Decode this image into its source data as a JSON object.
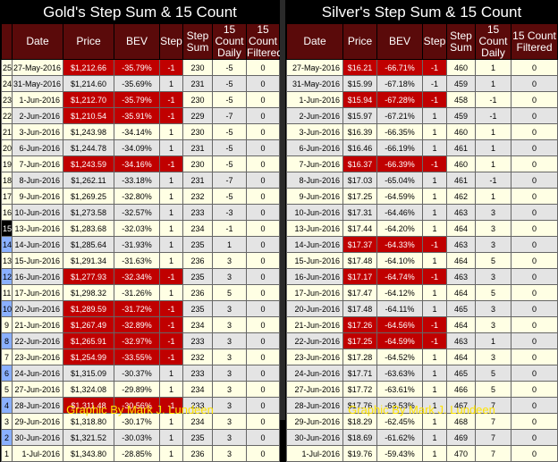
{
  "chart_data": [
    {
      "type": "table",
      "title": "Gold's Step Sum & 15 Count",
      "columns": [
        "",
        "Date",
        "Price",
        "BEV",
        "Step",
        "Step Sum",
        "15 Count Daily",
        "15 Count Filtered"
      ],
      "rows": [
        {
          "n": "25",
          "date": "27-May-2016",
          "price": "$1,212.66",
          "bev": "-35.79%",
          "step": "-1",
          "sum": "230",
          "daily": "-5",
          "filt": "0",
          "hl": true
        },
        {
          "n": "24",
          "date": "31-May-2016",
          "price": "$1,214.60",
          "bev": "-35.69%",
          "step": "1",
          "sum": "231",
          "daily": "-5",
          "filt": "0",
          "hl": false
        },
        {
          "n": "23",
          "date": "1-Jun-2016",
          "price": "$1,212.70",
          "bev": "-35.79%",
          "step": "-1",
          "sum": "230",
          "daily": "-5",
          "filt": "0",
          "hl": true
        },
        {
          "n": "22",
          "date": "2-Jun-2016",
          "price": "$1,210.54",
          "bev": "-35.91%",
          "step": "-1",
          "sum": "229",
          "daily": "-7",
          "filt": "0",
          "hl": true
        },
        {
          "n": "21",
          "date": "3-Jun-2016",
          "price": "$1,243.98",
          "bev": "-34.14%",
          "step": "1",
          "sum": "230",
          "daily": "-5",
          "filt": "0",
          "hl": false
        },
        {
          "n": "20",
          "date": "6-Jun-2016",
          "price": "$1,244.78",
          "bev": "-34.09%",
          "step": "1",
          "sum": "231",
          "daily": "-5",
          "filt": "0",
          "hl": false
        },
        {
          "n": "19",
          "date": "7-Jun-2016",
          "price": "$1,243.59",
          "bev": "-34.16%",
          "step": "-1",
          "sum": "230",
          "daily": "-5",
          "filt": "0",
          "hl": true
        },
        {
          "n": "18",
          "date": "8-Jun-2016",
          "price": "$1,262.11",
          "bev": "-33.18%",
          "step": "1",
          "sum": "231",
          "daily": "-7",
          "filt": "0",
          "hl": false
        },
        {
          "n": "17",
          "date": "9-Jun-2016",
          "price": "$1,269.25",
          "bev": "-32.80%",
          "step": "1",
          "sum": "232",
          "daily": "-5",
          "filt": "0",
          "hl": false
        },
        {
          "n": "16",
          "date": "10-Jun-2016",
          "price": "$1,273.58",
          "bev": "-32.57%",
          "step": "1",
          "sum": "233",
          "daily": "-3",
          "filt": "0",
          "hl": false
        },
        {
          "n": "15",
          "date": "13-Jun-2016",
          "price": "$1,283.68",
          "bev": "-32.03%",
          "step": "1",
          "sum": "234",
          "daily": "-1",
          "filt": "0",
          "hl": false
        },
        {
          "n": "14",
          "date": "14-Jun-2016",
          "price": "$1,285.64",
          "bev": "-31.93%",
          "step": "1",
          "sum": "235",
          "daily": "1",
          "filt": "0",
          "hl": false
        },
        {
          "n": "13",
          "date": "15-Jun-2016",
          "price": "$1,291.34",
          "bev": "-31.63%",
          "step": "1",
          "sum": "236",
          "daily": "3",
          "filt": "0",
          "hl": false
        },
        {
          "n": "12",
          "date": "16-Jun-2016",
          "price": "$1,277.93",
          "bev": "-32.34%",
          "step": "-1",
          "sum": "235",
          "daily": "3",
          "filt": "0",
          "hl": true
        },
        {
          "n": "11",
          "date": "17-Jun-2016",
          "price": "$1,298.32",
          "bev": "-31.26%",
          "step": "1",
          "sum": "236",
          "daily": "5",
          "filt": "0",
          "hl": false
        },
        {
          "n": "10",
          "date": "20-Jun-2016",
          "price": "$1,289.59",
          "bev": "-31.72%",
          "step": "-1",
          "sum": "235",
          "daily": "3",
          "filt": "0",
          "hl": true
        },
        {
          "n": "9",
          "date": "21-Jun-2016",
          "price": "$1,267.49",
          "bev": "-32.89%",
          "step": "-1",
          "sum": "234",
          "daily": "3",
          "filt": "0",
          "hl": true
        },
        {
          "n": "8",
          "date": "22-Jun-2016",
          "price": "$1,265.91",
          "bev": "-32.97%",
          "step": "-1",
          "sum": "233",
          "daily": "3",
          "filt": "0",
          "hl": true
        },
        {
          "n": "7",
          "date": "23-Jun-2016",
          "price": "$1,254.99",
          "bev": "-33.55%",
          "step": "-1",
          "sum": "232",
          "daily": "3",
          "filt": "0",
          "hl": true
        },
        {
          "n": "6",
          "date": "24-Jun-2016",
          "price": "$1,315.09",
          "bev": "-30.37%",
          "step": "1",
          "sum": "233",
          "daily": "3",
          "filt": "0",
          "hl": false
        },
        {
          "n": "5",
          "date": "27-Jun-2016",
          "price": "$1,324.08",
          "bev": "-29.89%",
          "step": "1",
          "sum": "234",
          "daily": "3",
          "filt": "0",
          "hl": false
        },
        {
          "n": "4",
          "date": "28-Jun-2016",
          "price": "$1,311.48",
          "bev": "-30.56%",
          "step": "-1",
          "sum": "233",
          "daily": "3",
          "filt": "0",
          "hl": true
        },
        {
          "n": "3",
          "date": "29-Jun-2016",
          "price": "$1,318.80",
          "bev": "-30.17%",
          "step": "1",
          "sum": "234",
          "daily": "3",
          "filt": "0",
          "hl": false
        },
        {
          "n": "2",
          "date": "30-Jun-2016",
          "price": "$1,321.52",
          "bev": "-30.03%",
          "step": "1",
          "sum": "235",
          "daily": "3",
          "filt": "0",
          "hl": false
        },
        {
          "n": "1",
          "date": "1-Jul-2016",
          "price": "$1,343.80",
          "bev": "-28.85%",
          "step": "1",
          "sum": "236",
          "daily": "3",
          "filt": "0",
          "hl": false
        }
      ],
      "footer": "Graphic By Mark J. Lundeen"
    },
    {
      "type": "table",
      "title": "Silver's Step Sum & 15 Count",
      "columns": [
        "Date",
        "Price",
        "BEV",
        "Step",
        "Step Sum",
        "15 Count Daily",
        "15 Count Filtered"
      ],
      "rows": [
        {
          "date": "27-May-2016",
          "price": "$16.21",
          "bev": "-66.71%",
          "step": "-1",
          "sum": "460",
          "daily": "1",
          "filt": "0",
          "hl": true
        },
        {
          "date": "31-May-2016",
          "price": "$15.99",
          "bev": "-67.18%",
          "step": "-1",
          "sum": "459",
          "daily": "1",
          "filt": "0",
          "hl": false
        },
        {
          "date": "1-Jun-2016",
          "price": "$15.94",
          "bev": "-67.28%",
          "step": "-1",
          "sum": "458",
          "daily": "-1",
          "filt": "0",
          "hl": true
        },
        {
          "date": "2-Jun-2016",
          "price": "$15.97",
          "bev": "-67.21%",
          "step": "1",
          "sum": "459",
          "daily": "-1",
          "filt": "0",
          "hl": false
        },
        {
          "date": "3-Jun-2016",
          "price": "$16.39",
          "bev": "-66.35%",
          "step": "1",
          "sum": "460",
          "daily": "1",
          "filt": "0",
          "hl": false
        },
        {
          "date": "6-Jun-2016",
          "price": "$16.46",
          "bev": "-66.19%",
          "step": "1",
          "sum": "461",
          "daily": "1",
          "filt": "0",
          "hl": false
        },
        {
          "date": "7-Jun-2016",
          "price": "$16.37",
          "bev": "-66.39%",
          "step": "-1",
          "sum": "460",
          "daily": "1",
          "filt": "0",
          "hl": true
        },
        {
          "date": "8-Jun-2016",
          "price": "$17.03",
          "bev": "-65.04%",
          "step": "1",
          "sum": "461",
          "daily": "-1",
          "filt": "0",
          "hl": false
        },
        {
          "date": "9-Jun-2016",
          "price": "$17.25",
          "bev": "-64.59%",
          "step": "1",
          "sum": "462",
          "daily": "1",
          "filt": "0",
          "hl": false
        },
        {
          "date": "10-Jun-2016",
          "price": "$17.31",
          "bev": "-64.46%",
          "step": "1",
          "sum": "463",
          "daily": "3",
          "filt": "0",
          "hl": false
        },
        {
          "date": "13-Jun-2016",
          "price": "$17.44",
          "bev": "-64.20%",
          "step": "1",
          "sum": "464",
          "daily": "3",
          "filt": "0",
          "hl": false
        },
        {
          "date": "14-Jun-2016",
          "price": "$17.37",
          "bev": "-64.33%",
          "step": "-1",
          "sum": "463",
          "daily": "3",
          "filt": "0",
          "hl": true
        },
        {
          "date": "15-Jun-2016",
          "price": "$17.48",
          "bev": "-64.10%",
          "step": "1",
          "sum": "464",
          "daily": "5",
          "filt": "0",
          "hl": false
        },
        {
          "date": "16-Jun-2016",
          "price": "$17.17",
          "bev": "-64.74%",
          "step": "-1",
          "sum": "463",
          "daily": "3",
          "filt": "0",
          "hl": true
        },
        {
          "date": "17-Jun-2016",
          "price": "$17.47",
          "bev": "-64.12%",
          "step": "1",
          "sum": "464",
          "daily": "5",
          "filt": "0",
          "hl": false
        },
        {
          "date": "20-Jun-2016",
          "price": "$17.48",
          "bev": "-64.11%",
          "step": "1",
          "sum": "465",
          "daily": "3",
          "filt": "0",
          "hl": false
        },
        {
          "date": "21-Jun-2016",
          "price": "$17.26",
          "bev": "-64.56%",
          "step": "-1",
          "sum": "464",
          "daily": "3",
          "filt": "0",
          "hl": true
        },
        {
          "date": "22-Jun-2016",
          "price": "$17.25",
          "bev": "-64.59%",
          "step": "-1",
          "sum": "463",
          "daily": "1",
          "filt": "0",
          "hl": true
        },
        {
          "date": "23-Jun-2016",
          "price": "$17.28",
          "bev": "-64.52%",
          "step": "1",
          "sum": "464",
          "daily": "3",
          "filt": "0",
          "hl": false
        },
        {
          "date": "24-Jun-2016",
          "price": "$17.71",
          "bev": "-63.63%",
          "step": "1",
          "sum": "465",
          "daily": "5",
          "filt": "0",
          "hl": false
        },
        {
          "date": "27-Jun-2016",
          "price": "$17.72",
          "bev": "-63.61%",
          "step": "1",
          "sum": "466",
          "daily": "5",
          "filt": "0",
          "hl": false
        },
        {
          "date": "28-Jun-2016",
          "price": "$17.76",
          "bev": "-63.53%",
          "step": "1",
          "sum": "467",
          "daily": "7",
          "filt": "0",
          "hl": false
        },
        {
          "date": "29-Jun-2016",
          "price": "$18.29",
          "bev": "-62.45%",
          "step": "1",
          "sum": "468",
          "daily": "7",
          "filt": "0",
          "hl": false
        },
        {
          "date": "30-Jun-2016",
          "price": "$18.69",
          "bev": "-61.62%",
          "step": "1",
          "sum": "469",
          "daily": "7",
          "filt": "0",
          "hl": false
        },
        {
          "date": "1-Jul-2016",
          "price": "$19.76",
          "bev": "-59.43%",
          "step": "1",
          "sum": "470",
          "daily": "7",
          "filt": "0",
          "hl": false
        }
      ],
      "footer": "Graphic By Mark J. Lundeen"
    }
  ],
  "colors": {
    "header_bg": "#5a0a0a",
    "highlight_red": "#c00000",
    "row_light": "#ffffe4",
    "row_gray": "#e4e4e4",
    "footer_text": "#ffe400",
    "row_number_blue": "#8ab0ff"
  }
}
